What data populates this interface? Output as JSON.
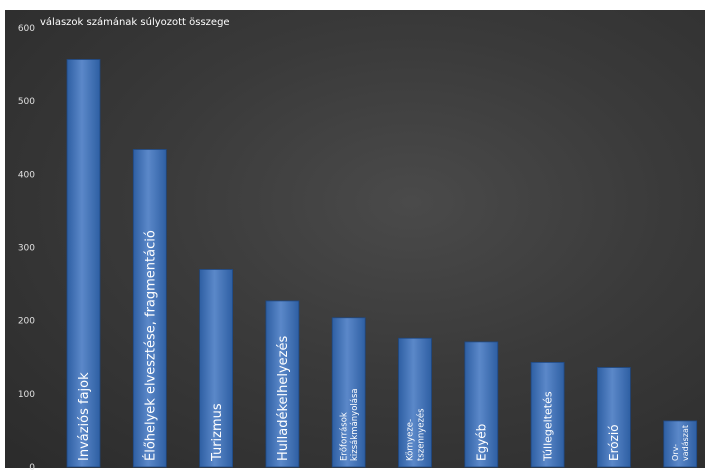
{
  "chart_data": {
    "type": "bar",
    "ylabel": "válaszok számának súlyozott összege",
    "ylim": [
      0,
      600
    ],
    "yticks": [
      0,
      100,
      200,
      300,
      400,
      500,
      600
    ],
    "grid": false,
    "bar_color": "#2e5fa3",
    "bar_highlight": "#5b88c9",
    "background_color": "#3a3a3a",
    "text_color": "#ffffff",
    "axis_text_color": "#e0e0e0",
    "categories": [
      "Inváziós fajok",
      "Élőhelyek elvesztése, fragmentáció",
      "Turizmus",
      "Hulladékelhelyezés",
      "Erőforrások kizsákmányolása",
      "Környeze-tszennyezés",
      "Egyéb",
      "Túllegeltetés",
      "Erózió",
      "Orv-vadászat"
    ],
    "label_lines": [
      [
        "Inváziós fajok"
      ],
      [
        "Élőhelyek elvesztése, fragmentáció"
      ],
      [
        "Turizmus"
      ],
      [
        "Hulladékelhelyezés"
      ],
      [
        "Erőforrások",
        "kizsákmányolása"
      ],
      [
        "Környeze-",
        "tszennyezés"
      ],
      [
        "Egyéb"
      ],
      [
        "Túllegeltetés"
      ],
      [
        "Erózió"
      ],
      [
        "Orv-",
        "vadászat"
      ]
    ],
    "values": [
      557,
      434,
      270,
      227,
      204,
      176,
      171,
      143,
      136,
      63
    ]
  }
}
